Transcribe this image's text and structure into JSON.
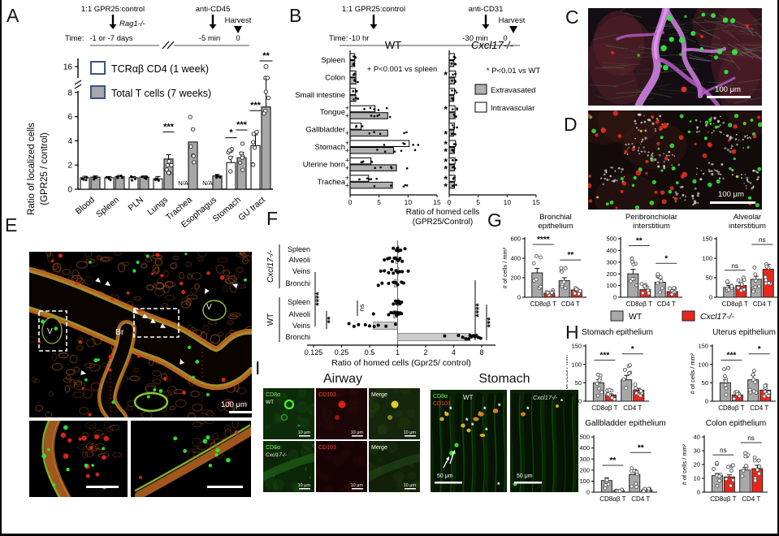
{
  "panelA": {
    "label": "A",
    "timeline": {
      "injection": "1:1 GPR25:control",
      "host": "Rag1-/-",
      "antibody": "anti-CD45",
      "harvest": "Harvest",
      "time_prefix": "Time:",
      "t1": "-1 or -7 days",
      "t2": "-5 min",
      "t3": "0"
    },
    "chart_data": {
      "type": "bar",
      "ylabel_line1": "Ratio of localized cells",
      "ylabel_line2": "(GPR25 / control)",
      "categories": [
        "Blood",
        "Spleen",
        "PLN",
        "Lungs",
        "Trachea",
        "Esophagus",
        "Stomach",
        "GU tract"
      ],
      "yticks": [
        0,
        2,
        4,
        6,
        8
      ],
      "ytick_break": "16",
      "na_label": "N/A",
      "series": [
        {
          "name": "TCRαβ CD4 (1 week)",
          "fill": "#ffffff",
          "values": [
            0.95,
            0.95,
            0.95,
            0.85,
            null,
            null,
            2.2,
            3.6
          ],
          "err": [
            0.12,
            0.1,
            0.1,
            0.2,
            0,
            0,
            0.5,
            0.9
          ],
          "sig": [
            null,
            null,
            null,
            null,
            null,
            null,
            "*",
            "***"
          ]
        },
        {
          "name": "Total T cells (7 weeks)",
          "fill": "#a8a8a8",
          "values": [
            1.0,
            1.05,
            1.0,
            2.5,
            3.9,
            1.1,
            2.6,
            6.8
          ],
          "err": [
            0.1,
            0.1,
            0.1,
            0.35,
            0,
            0.12,
            0.45,
            2.3
          ],
          "sig": [
            null,
            null,
            null,
            "***",
            null,
            null,
            "***",
            "**"
          ]
        }
      ],
      "outlier": {
        "category": "GU tract",
        "value": 16
      }
    }
  },
  "panelB": {
    "label": "B",
    "timeline": {
      "injection": "1:1 GPR25:control",
      "antibody": "anti-CD31",
      "harvest": "Harvest",
      "time_prefix": "Time:",
      "t1": "-10 hr",
      "t2": "-30 min",
      "t3": "0"
    },
    "chart_data": {
      "type": "bar-horizontal",
      "categories": [
        "Spleen",
        "Colon",
        "Small intestine",
        "Tongue",
        "Gallbladder",
        "Stomach",
        "Uterine horn",
        "Trachea"
      ],
      "xticks": [
        0,
        5,
        10,
        15
      ],
      "xlabel_line1": "Ratio of homed cells",
      "xlabel_line2": "(GPR25/Control)",
      "plus_symbol": "+",
      "star_symbol": "*",
      "subpanels": [
        {
          "title": "WT",
          "note": "+ P<0.001 vs spleen",
          "intravascular": [
            0.8,
            1.0,
            0.9,
            4.3,
            1.9,
            10.2,
            3.6,
            3.2
          ],
          "extravasated": [
            0.8,
            1.0,
            1.0,
            6.5,
            6.5,
            7.5,
            8.0,
            7.3
          ],
          "plus_intra": [
            0,
            0,
            0,
            1,
            0,
            1,
            1,
            1
          ],
          "plus_extra": [
            0,
            0,
            0,
            1,
            1,
            1,
            1,
            1
          ]
        },
        {
          "title": "Cxcl17-/-",
          "note": "* P<0.01 vs WT",
          "intravascular": [
            0.9,
            1.1,
            0.9,
            1.0,
            0.9,
            1.1,
            1.0,
            1.0
          ],
          "extravasated": [
            0.8,
            0.9,
            0.8,
            1.0,
            0.8,
            0.9,
            0.9,
            0.9
          ],
          "star_intra": [
            0,
            1,
            0,
            1,
            0,
            1,
            1,
            1
          ],
          "star_extra": [
            0,
            0,
            0,
            0,
            1,
            1,
            1,
            1
          ]
        }
      ],
      "legend": [
        {
          "label": "Extravasated",
          "fill": "#b0b0b0"
        },
        {
          "label": "Intravascular",
          "fill": "#ffffff"
        }
      ]
    }
  },
  "panelC": {
    "label": "C",
    "scalebar": "100 μm"
  },
  "panelD": {
    "label": "D",
    "scalebar": "100 μm"
  },
  "panelE": {
    "label": "E",
    "scalebar": "100 μm",
    "annotations": {
      "v1": "V",
      "br": "Br",
      "v2": "V"
    }
  },
  "panelF": {
    "label": "F",
    "chart_data": {
      "type": "scatter",
      "xscale": "log2",
      "xticks": [
        0.125,
        0.25,
        0.5,
        1,
        2,
        4,
        8
      ],
      "xlabel": "Ratio of homed cells (Gpr25/ control)",
      "groups": [
        {
          "name": "Cxcl17-/-",
          "rows": [
            {
              "label": "Spleen",
              "bar": 1.0,
              "points": [
                0.9,
                0.97,
                1.0,
                1.02,
                1.08,
                1.2
              ]
            },
            {
              "label": "Alveoli",
              "bar": 0.95,
              "points": [
                0.72,
                0.78,
                0.82,
                0.88,
                0.92,
                0.96,
                1.0,
                1.02,
                1.06,
                1.12
              ]
            },
            {
              "label": "Veins",
              "bar": 1.0,
              "points": [
                0.66,
                0.72,
                0.8,
                0.86,
                0.9,
                0.96,
                1.0,
                1.05,
                1.12,
                1.3
              ]
            },
            {
              "label": "Bronchi",
              "bar": 0.92,
              "points": [
                0.62,
                0.68,
                0.8,
                0.9,
                0.95,
                1.0,
                1.1,
                1.16
              ]
            }
          ]
        },
        {
          "name": "WT",
          "rows": [
            {
              "label": "Spleen",
              "bar": 1.0,
              "points": [
                0.9,
                0.95,
                0.98,
                1.0,
                1.0,
                1.03,
                1.06,
                1.1
              ]
            },
            {
              "label": "Alveoli",
              "bar": 0.9,
              "points": [
                0.55,
                0.8,
                0.85,
                0.9,
                0.92,
                0.95,
                0.97,
                1.0,
                1.0,
                1.03,
                1.06,
                1.1
              ]
            },
            {
              "label": "Veins",
              "bar": 0.55,
              "points": [
                0.3,
                0.34,
                0.38,
                0.45,
                0.5,
                0.56,
                0.62,
                0.75,
                0.95
              ]
            },
            {
              "label": "Bronchi",
              "bar": 6.0,
              "points": [
                3.2,
                4.5,
                5.0,
                5.4,
                5.8,
                6.0,
                6.2,
                6.5,
                6.8,
                7.0,
                7.4,
                7.8
              ]
            }
          ]
        }
      ],
      "sig": {
        "left_outer": "****",
        "left_inner": "**",
        "alveoli": "ns",
        "right_inner": "****",
        "right_outer": "***"
      }
    }
  },
  "panelG": {
    "label": "G",
    "ylabel": "# of cells / mm²",
    "legend": {
      "wt": "WT",
      "ko": "Cxcl17-/-",
      "wt_color": "#a8a8a8",
      "ko_color": "#e8271c"
    },
    "charts": [
      {
        "title_line1": "Bronchial",
        "title_line2": "epithelium",
        "ylim": 600,
        "yticks": [
          0,
          200,
          400,
          600
        ],
        "categories": [
          "CD8αβ T",
          "CD4 T"
        ],
        "wt": [
          250,
          170
        ],
        "ko": [
          40,
          75
        ],
        "wt_err": [
          45,
          30
        ],
        "ko_err": [
          12,
          15
        ],
        "sig": [
          "****",
          "**"
        ],
        "show_ylabel": true
      },
      {
        "title_line1": "Peribronchiolar",
        "title_line2": "interstitium",
        "ylim": 500,
        "yticks": [
          0,
          100,
          200,
          300,
          400,
          500
        ],
        "categories": [
          "CD8αβ T",
          "CD4 T"
        ],
        "wt": [
          200,
          128
        ],
        "ko": [
          65,
          48
        ],
        "wt_err": [
          40,
          35
        ],
        "ko_err": [
          18,
          15
        ],
        "sig": [
          "**",
          "*"
        ],
        "show_ylabel": false
      },
      {
        "title_line1": "Alveolar",
        "title_line2": "interstitium",
        "ylim": 150,
        "yticks": [
          0,
          50,
          100,
          150
        ],
        "categories": [
          "CD8αβ T",
          "CD4 T"
        ],
        "wt": [
          25,
          46
        ],
        "ko": [
          30,
          72
        ],
        "wt_err": [
          5,
          8
        ],
        "ko_err": [
          7,
          12
        ],
        "sig": [
          "ns",
          "ns"
        ],
        "show_ylabel": false
      }
    ]
  },
  "panelH": {
    "label": "H",
    "ylabel": "# of cells / mm²",
    "charts": [
      {
        "title": "Stomach epithelium",
        "ylim": 150,
        "yticks": [
          0,
          50,
          100,
          150
        ],
        "categories": [
          "CD8αβ T",
          "CD4 T"
        ],
        "wt": [
          50,
          58
        ],
        "ko": [
          17,
          30
        ],
        "wt_err": [
          8,
          12
        ],
        "ko_err": [
          3,
          5
        ],
        "sig": [
          "***",
          "*"
        ]
      },
      {
        "title": "Uterus epithelium",
        "ylim": 150,
        "yticks": [
          0,
          50,
          100,
          150
        ],
        "categories": [
          "CD8αβ T",
          "CD4 T"
        ],
        "wt": [
          50,
          58
        ],
        "ko": [
          17,
          30
        ],
        "wt_err": [
          8,
          12
        ],
        "ko_err": [
          3,
          5
        ],
        "sig": [
          "***",
          "*"
        ]
      },
      {
        "title": "Gallbladder epithelium",
        "ylim": 500,
        "yticks": [
          0,
          100,
          200,
          300,
          400,
          500
        ],
        "categories": [
          "CD8αβ T",
          "CD4 T"
        ],
        "wt": [
          105,
          160
        ],
        "ko": [
          15,
          18
        ],
        "wt_err": [
          25,
          45
        ],
        "ko_err": [
          6,
          8
        ],
        "sig": [
          "**",
          "**"
        ]
      },
      {
        "title": "Colon epithelium",
        "ylim": 40,
        "yticks": [
          0,
          10,
          20,
          30,
          40
        ],
        "categories": [
          "CD8αβ T",
          "CD4 T"
        ],
        "wt": [
          12,
          16
        ],
        "ko": [
          11,
          17
        ],
        "wt_err": [
          1.5,
          2
        ],
        "ko_err": [
          1.5,
          2.5
        ],
        "sig": [
          "ns",
          "ns"
        ]
      }
    ]
  },
  "panelI": {
    "label": "I",
    "airway_title": "Airway",
    "stomach_title": "Stomach",
    "airway_tiles": [
      {
        "marker": "CD8α",
        "marker_color": "#7df25f",
        "line2": "WT",
        "scale": "10 μm"
      },
      {
        "marker": "CD103",
        "marker_color": "#ff4433",
        "scale": "10 μm"
      },
      {
        "marker": "Merge",
        "marker_color": "#ffffff",
        "scale": "10 μm"
      },
      {
        "marker": "CD8α",
        "marker_color": "#7df25f",
        "line2": "Cxcl17-/-",
        "scale": "10 μm"
      },
      {
        "marker": "CD103",
        "marker_color": "#ff4433",
        "scale": "10 μm"
      },
      {
        "marker": "Merge",
        "marker_color": "#ffffff",
        "scale": "10 μm"
      }
    ],
    "stomach_tiles": [
      {
        "marker1": "CD8α",
        "marker2": "CD103",
        "genotype": "WT",
        "scale": "50 μm"
      },
      {
        "genotype": "Cxcl17-/-",
        "scale": "50 μm"
      }
    ]
  }
}
